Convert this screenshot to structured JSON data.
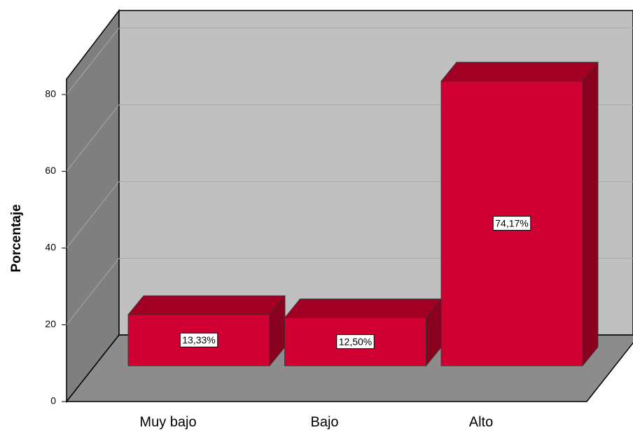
{
  "chart_data": {
    "type": "bar3d",
    "y_label": "Porcentaje",
    "categories": [
      "Muy bajo",
      "Bajo",
      "Alto"
    ],
    "values": [
      13.33,
      12.5,
      74.17
    ],
    "value_labels": [
      "13,33%",
      "12,50%",
      "74,17%"
    ],
    "color": "#d10032",
    "ylim": [
      0,
      84
    ],
    "yticks": [
      0,
      20,
      40,
      60,
      80
    ],
    "grid": true
  }
}
